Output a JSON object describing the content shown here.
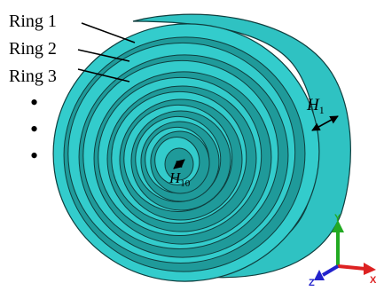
{
  "labels": {
    "ring1": "Ring 1",
    "ring2": "Ring 2",
    "ring3": "Ring 3",
    "bullet": "•",
    "h1_main": "H",
    "h1_sub": "1",
    "h10_main": "H",
    "h10_sub": "10"
  },
  "axes": {
    "y": "Y",
    "z": "Z",
    "x": "X"
  },
  "colors": {
    "ring_face": "#33cccc",
    "groove": "#1f9a9a",
    "outline": "#0f3f3f",
    "shell_side": "#2fc2c2",
    "axis_y": "#22aa22",
    "axis_x": "#dd2222",
    "axis_z": "#2222cc",
    "arrow": "#000000"
  }
}
